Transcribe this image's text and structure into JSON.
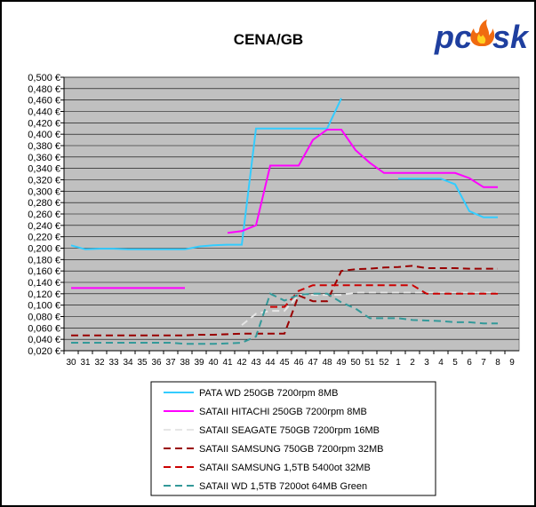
{
  "logo": {
    "text_part1": "pc",
    "text_part2": "sk",
    "color_text": "#1f3f9f",
    "color_flame": "#f06a10"
  },
  "chart_data": {
    "type": "line",
    "title": "CENA/GB",
    "xlabel": "",
    "ylabel": "",
    "categories": [
      "30",
      "31",
      "32",
      "33",
      "34",
      "35",
      "36",
      "37",
      "38",
      "39",
      "40",
      "41",
      "42",
      "43",
      "44",
      "45",
      "46",
      "47",
      "48",
      "49",
      "50",
      "51",
      "52",
      "1",
      "2",
      "3",
      "4",
      "5",
      "6",
      "7",
      "8",
      "9"
    ],
    "ylim": [
      0.02,
      0.5
    ],
    "y_ticks": [
      "0,020 €",
      "0,040 €",
      "0,060 €",
      "0,080 €",
      "0,100 €",
      "0,120 €",
      "0,140 €",
      "0,160 €",
      "0,180 €",
      "0,200 €",
      "0,220 €",
      "0,240 €",
      "0,260 €",
      "0,280 €",
      "0,300 €",
      "0,320 €",
      "0,340 €",
      "0,360 €",
      "0,380 €",
      "0,400 €",
      "0,420 €",
      "0,440 €",
      "0,460 €",
      "0,480 €",
      "0,500 €"
    ],
    "grid": true,
    "plot_background": "#c0c0c0",
    "legend_position": "bottom",
    "series": [
      {
        "name": "PATA WD 250GB 7200rpm 8MB",
        "color": "#33ccff",
        "dash": "solid",
        "values": [
          0.205,
          0.198,
          0.199,
          0.199,
          0.198,
          0.198,
          0.198,
          0.198,
          0.198,
          0.203,
          0.205,
          0.206,
          0.206,
          0.41,
          0.41,
          0.41,
          0.41,
          0.41,
          0.41,
          0.463,
          null,
          null,
          null,
          0.322,
          0.322,
          0.322,
          0.322,
          0.312,
          0.265,
          0.254,
          0.254,
          null
        ]
      },
      {
        "name": "SATAII HITACHI 250GB 7200rpm 8MB",
        "color": "#ff00ff",
        "dash": "solid",
        "values": [
          0.13,
          0.13,
          0.13,
          0.13,
          0.13,
          0.13,
          0.13,
          0.13,
          0.13,
          null,
          null,
          0.227,
          0.23,
          0.24,
          0.345,
          0.345,
          0.345,
          0.39,
          0.408,
          0.408,
          0.372,
          0.35,
          0.332,
          0.332,
          0.332,
          0.332,
          0.332,
          0.332,
          0.323,
          0.307,
          0.307,
          null
        ]
      },
      {
        "name": "SATAII SEAGATE 750GB 7200rpm 16MB",
        "color": "#e6e6e6",
        "dash": "dashed",
        "values": [
          null,
          null,
          null,
          null,
          null,
          null,
          null,
          null,
          null,
          null,
          null,
          null,
          0.065,
          0.085,
          0.09,
          0.09,
          0.118,
          0.118,
          0.118,
          0.118,
          0.122,
          0.122,
          0.122,
          0.122,
          0.122,
          0.122,
          0.122,
          0.122,
          0.122,
          0.122,
          0.122,
          null
        ]
      },
      {
        "name": "SATAII SAMSUNG 750GB 7200rpm 32MB",
        "color": "#990000",
        "dash": "dashed",
        "values": [
          0.047,
          0.047,
          0.047,
          0.047,
          0.047,
          0.047,
          0.047,
          0.047,
          0.047,
          0.048,
          0.048,
          0.049,
          0.05,
          0.05,
          0.05,
          0.05,
          0.117,
          0.107,
          0.107,
          0.16,
          0.163,
          0.164,
          0.166,
          0.167,
          0.169,
          0.165,
          0.165,
          0.165,
          0.164,
          0.164,
          0.164,
          null
        ]
      },
      {
        "name": "SATAII SAMSUNG 1,5TB 5400ot 32MB",
        "color": "#cc0000",
        "dash": "dashed",
        "values": [
          null,
          null,
          null,
          null,
          null,
          null,
          null,
          null,
          null,
          null,
          null,
          null,
          null,
          null,
          0.097,
          0.097,
          0.125,
          0.135,
          0.135,
          0.135,
          0.135,
          0.135,
          0.135,
          0.135,
          0.135,
          0.12,
          0.12,
          0.12,
          0.12,
          0.12,
          0.12,
          null
        ]
      },
      {
        "name": "SATAII WD 1,5TB 7200ot 64MB Green",
        "color": "#339999",
        "dash": "dashed",
        "values": [
          0.034,
          0.034,
          0.034,
          0.034,
          0.034,
          0.034,
          0.034,
          0.034,
          0.032,
          0.032,
          0.032,
          0.033,
          0.034,
          0.045,
          0.12,
          0.108,
          0.118,
          0.12,
          0.12,
          0.105,
          0.094,
          0.077,
          0.077,
          0.077,
          0.074,
          0.073,
          0.072,
          0.07,
          0.07,
          0.068,
          0.068,
          null
        ]
      }
    ]
  }
}
